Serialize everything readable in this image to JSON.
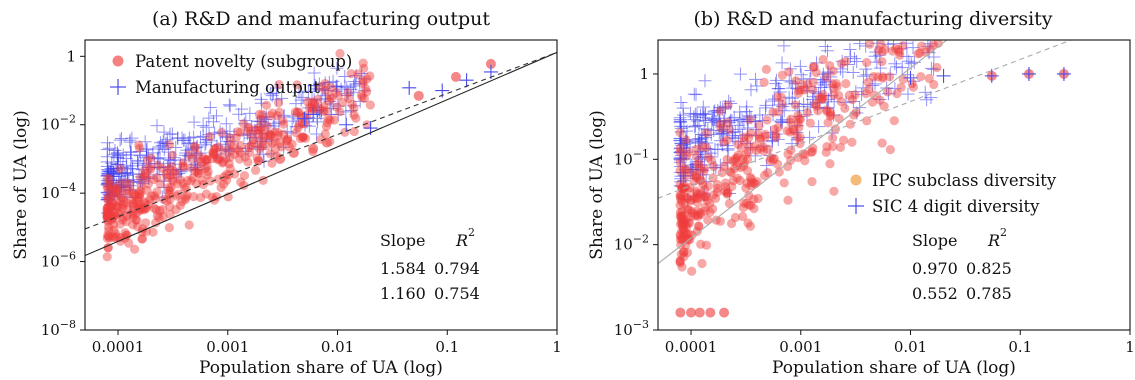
{
  "chart_data": [
    {
      "type": "scatter",
      "title": "(a) R&D and manufacturing output",
      "xlabel": "Population share of UA (log)",
      "ylabel": "Share of UA (log)",
      "xscale": "log",
      "yscale": "log",
      "xlim": [
        5e-05,
        1
      ],
      "ylim": [
        1e-08,
        3
      ],
      "x_ticks": [
        {
          "value": 0.0001,
          "label": "0.0001"
        },
        {
          "value": 0.001,
          "label": "0.001"
        },
        {
          "value": 0.01,
          "label": "0.01"
        },
        {
          "value": 0.1,
          "label": "0.1"
        },
        {
          "value": 1,
          "label": "1"
        }
      ],
      "y_ticks": [
        {
          "value": 1e-08,
          "base": "10",
          "exp": "−8"
        },
        {
          "value": 1e-06,
          "base": "10",
          "exp": "−6"
        },
        {
          "value": 0.0001,
          "base": "10",
          "exp": "−4"
        },
        {
          "value": 0.01,
          "base": "10",
          "exp": "−2"
        },
        {
          "value": 1,
          "base": "1",
          "exp": ""
        }
      ],
      "legend_position": "top-left",
      "series": [
        {
          "name": "Patent novelty (subgroup)",
          "marker": "circle",
          "color": "#f05555",
          "slope": 1.584,
          "r2": 0.794,
          "fit_line": {
            "style": "solid",
            "color": "#222222",
            "x": [
              5e-05,
              1
            ],
            "y": [
              1.5e-06,
              1.3
            ]
          },
          "x": [
            0.055,
            0.12,
            0.25,
            0.006,
            0.008,
            0.004,
            0.003
          ],
          "y": [
            0.07,
            0.25,
            0.6,
            0.002,
            0.003,
            0.0015,
            0.001
          ]
        },
        {
          "name": "Manufacturing output",
          "marker": "plus",
          "color": "#4a4aee",
          "slope": 1.16,
          "r2": 0.754,
          "fit_line": {
            "style": "dashed",
            "color": "#333333",
            "x": [
              5e-05,
              1
            ],
            "y": [
              9e-06,
              1.3
            ]
          },
          "x": [
            0.045,
            0.09,
            0.15,
            0.25,
            0.005,
            0.006,
            0.012,
            0.02
          ],
          "y": [
            0.12,
            0.1,
            0.2,
            0.35,
            0.015,
            0.02,
            0.01,
            0.008
          ]
        }
      ],
      "stats_table": {
        "headers": [
          "Slope",
          "R"
        ],
        "header_sup": "2",
        "rows": [
          [
            "1.584",
            "0.794"
          ],
          [
            "1.160",
            "0.754"
          ]
        ]
      }
    },
    {
      "type": "scatter",
      "title": "(b) R&D and manufacturing diversity",
      "xlabel": "Population share of UA (log)",
      "ylabel": "Share of UA (log)",
      "xscale": "log",
      "yscale": "log",
      "xlim": [
        5e-05,
        1
      ],
      "ylim": [
        0.001,
        2.5
      ],
      "x_ticks": [
        {
          "value": 0.0001,
          "label": "0.0001"
        },
        {
          "value": 0.001,
          "label": "0.001"
        },
        {
          "value": 0.01,
          "label": "0.01"
        },
        {
          "value": 0.1,
          "label": "0.1"
        },
        {
          "value": 1,
          "label": "1"
        }
      ],
      "y_ticks": [
        {
          "value": 0.001,
          "base": "10",
          "exp": "−3"
        },
        {
          "value": 0.01,
          "base": "10",
          "exp": "−2"
        },
        {
          "value": 0.1,
          "base": "10",
          "exp": "−1"
        },
        {
          "value": 1,
          "base": "1",
          "exp": ""
        }
      ],
      "legend_position": "right",
      "series": [
        {
          "name": "IPC subclass diversity",
          "marker": "circle",
          "color": "#f5b36a",
          "points_color": "#f05555",
          "slope": 0.97,
          "r2": 0.825,
          "fit_line": {
            "style": "solid",
            "color": "#aaaaaa",
            "x": [
              5e-05,
              0.03
            ],
            "y": [
              0.006,
              3.5
            ]
          },
          "x": [
            0.055,
            0.12,
            0.25,
            8e-05,
            0.0001,
            0.00012,
            0.00015,
            0.0002
          ],
          "y": [
            0.95,
            1.0,
            1.0,
            0.0016,
            0.0016,
            0.0016,
            0.0016,
            0.0016
          ]
        },
        {
          "name": "SIC 4 digit diversity",
          "marker": "plus",
          "color": "#4a4aee",
          "slope": 0.552,
          "r2": 0.785,
          "fit_line": {
            "style": "dashed",
            "color": "#aaaaaa",
            "x": [
              5e-05,
              1
            ],
            "y": [
              0.035,
              4.6
            ]
          },
          "x": [
            0.055,
            0.12,
            0.25,
            0.01,
            0.02
          ],
          "y": [
            0.95,
            1.0,
            1.0,
            0.9,
            0.95
          ]
        }
      ],
      "stats_table": {
        "headers": [
          "Slope",
          "R"
        ],
        "header_sup": "2",
        "rows": [
          [
            "0.970",
            "0.825"
          ],
          [
            "0.552",
            "0.785"
          ]
        ]
      }
    }
  ]
}
